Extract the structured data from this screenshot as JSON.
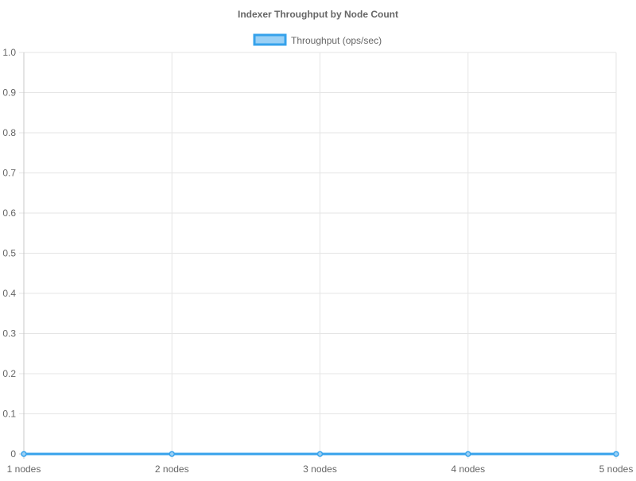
{
  "chart_data": {
    "type": "line",
    "title": "Indexer Throughput by Node Count",
    "categories": [
      "1 nodes",
      "2 nodes",
      "3 nodes",
      "4 nodes",
      "5 nodes"
    ],
    "series": [
      {
        "name": "Throughput (ops/sec)",
        "values": [
          0,
          0,
          0,
          0,
          0
        ],
        "color": "#36a2eb",
        "fill": "#9ad0f5"
      }
    ],
    "ylim": [
      0,
      1
    ],
    "yticks": [
      "0",
      "0.1",
      "0.2",
      "0.3",
      "0.4",
      "0.5",
      "0.6",
      "0.7",
      "0.8",
      "0.9",
      "1.0"
    ],
    "grid": true,
    "legend_position": "top-center"
  }
}
